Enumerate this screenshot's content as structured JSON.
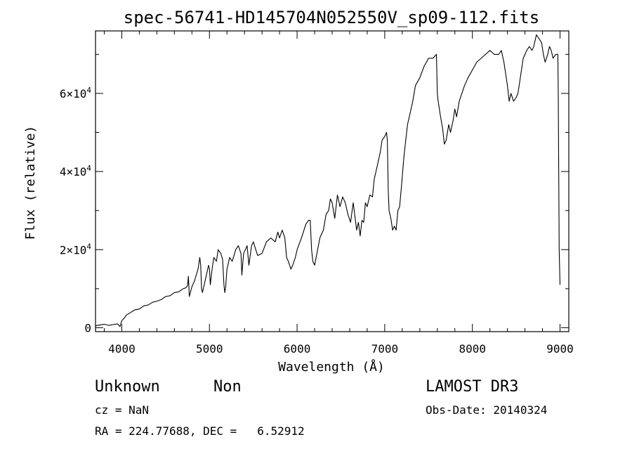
{
  "chart_data": {
    "type": "line",
    "title": "spec-56741-HD145704N052550V_sp09-112.fits",
    "xlabel": "Wavelength (Å)",
    "ylabel": "Flux (relative)",
    "xlim": [
      3700,
      9100
    ],
    "ylim": [
      -1000,
      76000
    ],
    "x_ticks": [
      4000,
      5000,
      6000,
      7000,
      8000,
      9000
    ],
    "y_ticks": [
      {
        "value": 0,
        "label": "0"
      },
      {
        "value": 20000,
        "label": "2×10^4"
      },
      {
        "value": 40000,
        "label": "4×10^4"
      },
      {
        "value": 60000,
        "label": "6×10^4"
      }
    ],
    "grid": false,
    "series": [
      {
        "x": [
          3700,
          3750,
          3800,
          3850,
          3900,
          3950,
          3980,
          4000,
          4030,
          4050,
          4100,
          4150,
          4200,
          4250,
          4300,
          4350,
          4400,
          4450,
          4500,
          4550,
          4600,
          4650,
          4700,
          4730,
          4750,
          4760,
          4770,
          4800,
          4830,
          4850,
          4870,
          4890,
          4900,
          4910,
          4920,
          4940,
          4960,
          4990,
          5000,
          5010,
          5030,
          5050,
          5080,
          5100,
          5130,
          5150,
          5165,
          5175,
          5185,
          5200,
          5230,
          5260,
          5300,
          5330,
          5360,
          5370,
          5390,
          5410,
          5430,
          5450,
          5480,
          5500,
          5550,
          5600,
          5650,
          5700,
          5750,
          5780,
          5800,
          5830,
          5860,
          5880,
          5900,
          5930,
          5950,
          5980,
          6000,
          6050,
          6100,
          6130,
          6150,
          6165,
          6180,
          6200,
          6230,
          6260,
          6300,
          6330,
          6360,
          6380,
          6400,
          6430,
          6460,
          6490,
          6520,
          6550,
          6580,
          6610,
          6640,
          6680,
          6700,
          6720,
          6740,
          6760,
          6780,
          6800,
          6830,
          6860,
          6880,
          6900,
          6920,
          6950,
          6970,
          7000,
          7020,
          7030,
          7040,
          7050,
          7070,
          7090,
          7110,
          7130,
          7150,
          7170,
          7190,
          7220,
          7260,
          7290,
          7320,
          7350,
          7400,
          7450,
          7500,
          7550,
          7590,
          7600,
          7610,
          7630,
          7660,
          7680,
          7700,
          7730,
          7750,
          7780,
          7800,
          7820,
          7850,
          7880,
          7910,
          7950,
          8000,
          8050,
          8100,
          8150,
          8200,
          8250,
          8300,
          8330,
          8360,
          8380,
          8400,
          8420,
          8440,
          8470,
          8500,
          8520,
          8540,
          8560,
          8580,
          8600,
          8620,
          8650,
          8680,
          8700,
          8730,
          8760,
          8790,
          8810,
          8830,
          8860,
          8880,
          8900,
          8920,
          8950,
          8975,
          8980,
          8990,
          9000
        ],
        "y": [
          500,
          700,
          900,
          600,
          800,
          1000,
          300,
          1800,
          2500,
          3200,
          3900,
          4600,
          4800,
          5600,
          5800,
          6500,
          6800,
          7200,
          8000,
          8200,
          9000,
          9200,
          10000,
          10200,
          10800,
          13200,
          8000,
          10500,
          12000,
          13500,
          15000,
          18000,
          16000,
          10000,
          9000,
          11000,
          13000,
          16000,
          15000,
          11000,
          15000,
          18000,
          17000,
          20000,
          19000,
          17500,
          11000,
          9000,
          10500,
          15000,
          18000,
          17000,
          20000,
          21000,
          19000,
          13500,
          19000,
          20000,
          21000,
          16000,
          21000,
          22000,
          18500,
          19000,
          22000,
          23000,
          22000,
          24500,
          23000,
          25000,
          23000,
          18000,
          17000,
          15000,
          16000,
          18000,
          20000,
          23000,
          26500,
          27500,
          27500,
          20000,
          17000,
          16000,
          19500,
          23000,
          25000,
          29000,
          30000,
          33000,
          32000,
          28000,
          34000,
          31000,
          33500,
          32000,
          29000,
          27000,
          32000,
          25000,
          27000,
          23500,
          27500,
          27000,
          32000,
          31000,
          34000,
          33500,
          38000,
          40000,
          42000,
          45000,
          48000,
          49000,
          50000,
          48000,
          35000,
          30000,
          28000,
          25000,
          26000,
          25000,
          30000,
          31000,
          36000,
          44000,
          52000,
          55000,
          58000,
          62000,
          64000,
          67000,
          69000,
          69000,
          70000,
          60000,
          58000,
          55000,
          51000,
          47000,
          48000,
          52000,
          50000,
          53000,
          56000,
          54000,
          58000,
          60000,
          62000,
          64000,
          66000,
          68000,
          69000,
          70000,
          71000,
          70000,
          70000,
          71000,
          68000,
          65000,
          62000,
          58000,
          60000,
          58000,
          59000,
          60000,
          63000,
          66000,
          69000,
          70000,
          71000,
          72000,
          71000,
          72000,
          75000,
          74000,
          73000,
          70000,
          68000,
          70000,
          72000,
          71000,
          69000,
          70000,
          70000,
          60000,
          20000,
          11000
        ]
      }
    ]
  },
  "info": {
    "class": "Unknown",
    "subclass": "Non",
    "survey": "LAMOST DR3",
    "cz": "cz = NaN",
    "obs_date": "Obs-Date: 20140324",
    "radec": "RA = 224.77688, DEC =   6.52912"
  }
}
